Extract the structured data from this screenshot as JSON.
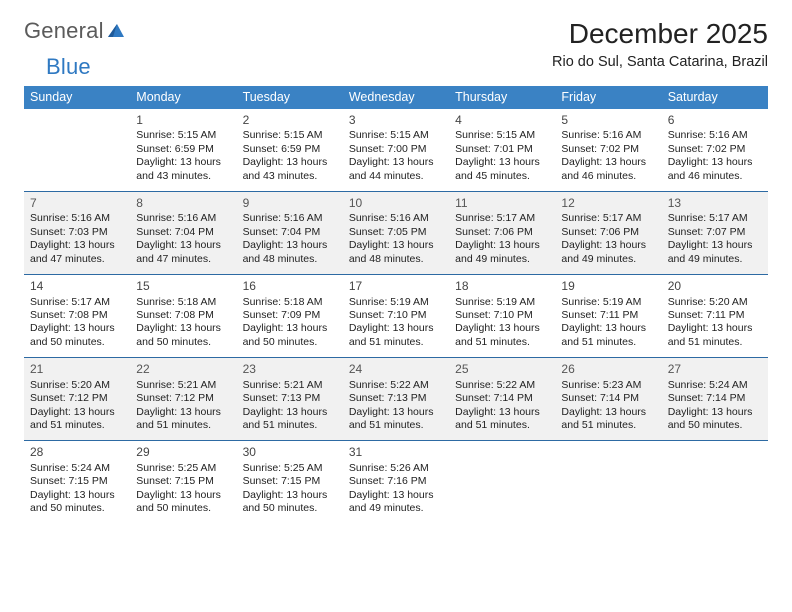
{
  "logo": {
    "text1": "General",
    "text2": "Blue"
  },
  "title": "December 2025",
  "location": "Rio do Sul, Santa Catarina, Brazil",
  "colors": {
    "header_bg": "#3a82c4",
    "header_text": "#ffffff",
    "rule": "#2d6aa3",
    "shaded_cell": "#f1f1f1",
    "body_text": "#222222",
    "logo_gray": "#5b5b5b",
    "logo_blue": "#2f79c2"
  },
  "day_headers": [
    "Sunday",
    "Monday",
    "Tuesday",
    "Wednesday",
    "Thursday",
    "Friday",
    "Saturday"
  ],
  "layout": {
    "columns": 7,
    "rows": 5,
    "start_offset": 1,
    "days_in_month": 31,
    "font": {
      "title_size_pt": 21,
      "location_size_pt": 11,
      "header_size_pt": 9.5,
      "cell_size_pt": 8,
      "daynum_size_pt": 9
    }
  },
  "days": [
    {
      "n": 1,
      "sunrise": "5:15 AM",
      "sunset": "6:59 PM",
      "daylight": "13 hours and 43 minutes."
    },
    {
      "n": 2,
      "sunrise": "5:15 AM",
      "sunset": "6:59 PM",
      "daylight": "13 hours and 43 minutes."
    },
    {
      "n": 3,
      "sunrise": "5:15 AM",
      "sunset": "7:00 PM",
      "daylight": "13 hours and 44 minutes."
    },
    {
      "n": 4,
      "sunrise": "5:15 AM",
      "sunset": "7:01 PM",
      "daylight": "13 hours and 45 minutes."
    },
    {
      "n": 5,
      "sunrise": "5:16 AM",
      "sunset": "7:02 PM",
      "daylight": "13 hours and 46 minutes."
    },
    {
      "n": 6,
      "sunrise": "5:16 AM",
      "sunset": "7:02 PM",
      "daylight": "13 hours and 46 minutes."
    },
    {
      "n": 7,
      "sunrise": "5:16 AM",
      "sunset": "7:03 PM",
      "daylight": "13 hours and 47 minutes."
    },
    {
      "n": 8,
      "sunrise": "5:16 AM",
      "sunset": "7:04 PM",
      "daylight": "13 hours and 47 minutes."
    },
    {
      "n": 9,
      "sunrise": "5:16 AM",
      "sunset": "7:04 PM",
      "daylight": "13 hours and 48 minutes."
    },
    {
      "n": 10,
      "sunrise": "5:16 AM",
      "sunset": "7:05 PM",
      "daylight": "13 hours and 48 minutes."
    },
    {
      "n": 11,
      "sunrise": "5:17 AM",
      "sunset": "7:06 PM",
      "daylight": "13 hours and 49 minutes."
    },
    {
      "n": 12,
      "sunrise": "5:17 AM",
      "sunset": "7:06 PM",
      "daylight": "13 hours and 49 minutes."
    },
    {
      "n": 13,
      "sunrise": "5:17 AM",
      "sunset": "7:07 PM",
      "daylight": "13 hours and 49 minutes."
    },
    {
      "n": 14,
      "sunrise": "5:17 AM",
      "sunset": "7:08 PM",
      "daylight": "13 hours and 50 minutes."
    },
    {
      "n": 15,
      "sunrise": "5:18 AM",
      "sunset": "7:08 PM",
      "daylight": "13 hours and 50 minutes."
    },
    {
      "n": 16,
      "sunrise": "5:18 AM",
      "sunset": "7:09 PM",
      "daylight": "13 hours and 50 minutes."
    },
    {
      "n": 17,
      "sunrise": "5:19 AM",
      "sunset": "7:10 PM",
      "daylight": "13 hours and 51 minutes."
    },
    {
      "n": 18,
      "sunrise": "5:19 AM",
      "sunset": "7:10 PM",
      "daylight": "13 hours and 51 minutes."
    },
    {
      "n": 19,
      "sunrise": "5:19 AM",
      "sunset": "7:11 PM",
      "daylight": "13 hours and 51 minutes."
    },
    {
      "n": 20,
      "sunrise": "5:20 AM",
      "sunset": "7:11 PM",
      "daylight": "13 hours and 51 minutes."
    },
    {
      "n": 21,
      "sunrise": "5:20 AM",
      "sunset": "7:12 PM",
      "daylight": "13 hours and 51 minutes."
    },
    {
      "n": 22,
      "sunrise": "5:21 AM",
      "sunset": "7:12 PM",
      "daylight": "13 hours and 51 minutes."
    },
    {
      "n": 23,
      "sunrise": "5:21 AM",
      "sunset": "7:13 PM",
      "daylight": "13 hours and 51 minutes."
    },
    {
      "n": 24,
      "sunrise": "5:22 AM",
      "sunset": "7:13 PM",
      "daylight": "13 hours and 51 minutes."
    },
    {
      "n": 25,
      "sunrise": "5:22 AM",
      "sunset": "7:14 PM",
      "daylight": "13 hours and 51 minutes."
    },
    {
      "n": 26,
      "sunrise": "5:23 AM",
      "sunset": "7:14 PM",
      "daylight": "13 hours and 51 minutes."
    },
    {
      "n": 27,
      "sunrise": "5:24 AM",
      "sunset": "7:14 PM",
      "daylight": "13 hours and 50 minutes."
    },
    {
      "n": 28,
      "sunrise": "5:24 AM",
      "sunset": "7:15 PM",
      "daylight": "13 hours and 50 minutes."
    },
    {
      "n": 29,
      "sunrise": "5:25 AM",
      "sunset": "7:15 PM",
      "daylight": "13 hours and 50 minutes."
    },
    {
      "n": 30,
      "sunrise": "5:25 AM",
      "sunset": "7:15 PM",
      "daylight": "13 hours and 50 minutes."
    },
    {
      "n": 31,
      "sunrise": "5:26 AM",
      "sunset": "7:16 PM",
      "daylight": "13 hours and 49 minutes."
    }
  ],
  "labels": {
    "sunrise_prefix": "Sunrise: ",
    "sunset_prefix": "Sunset: ",
    "daylight_prefix": "Daylight: "
  }
}
